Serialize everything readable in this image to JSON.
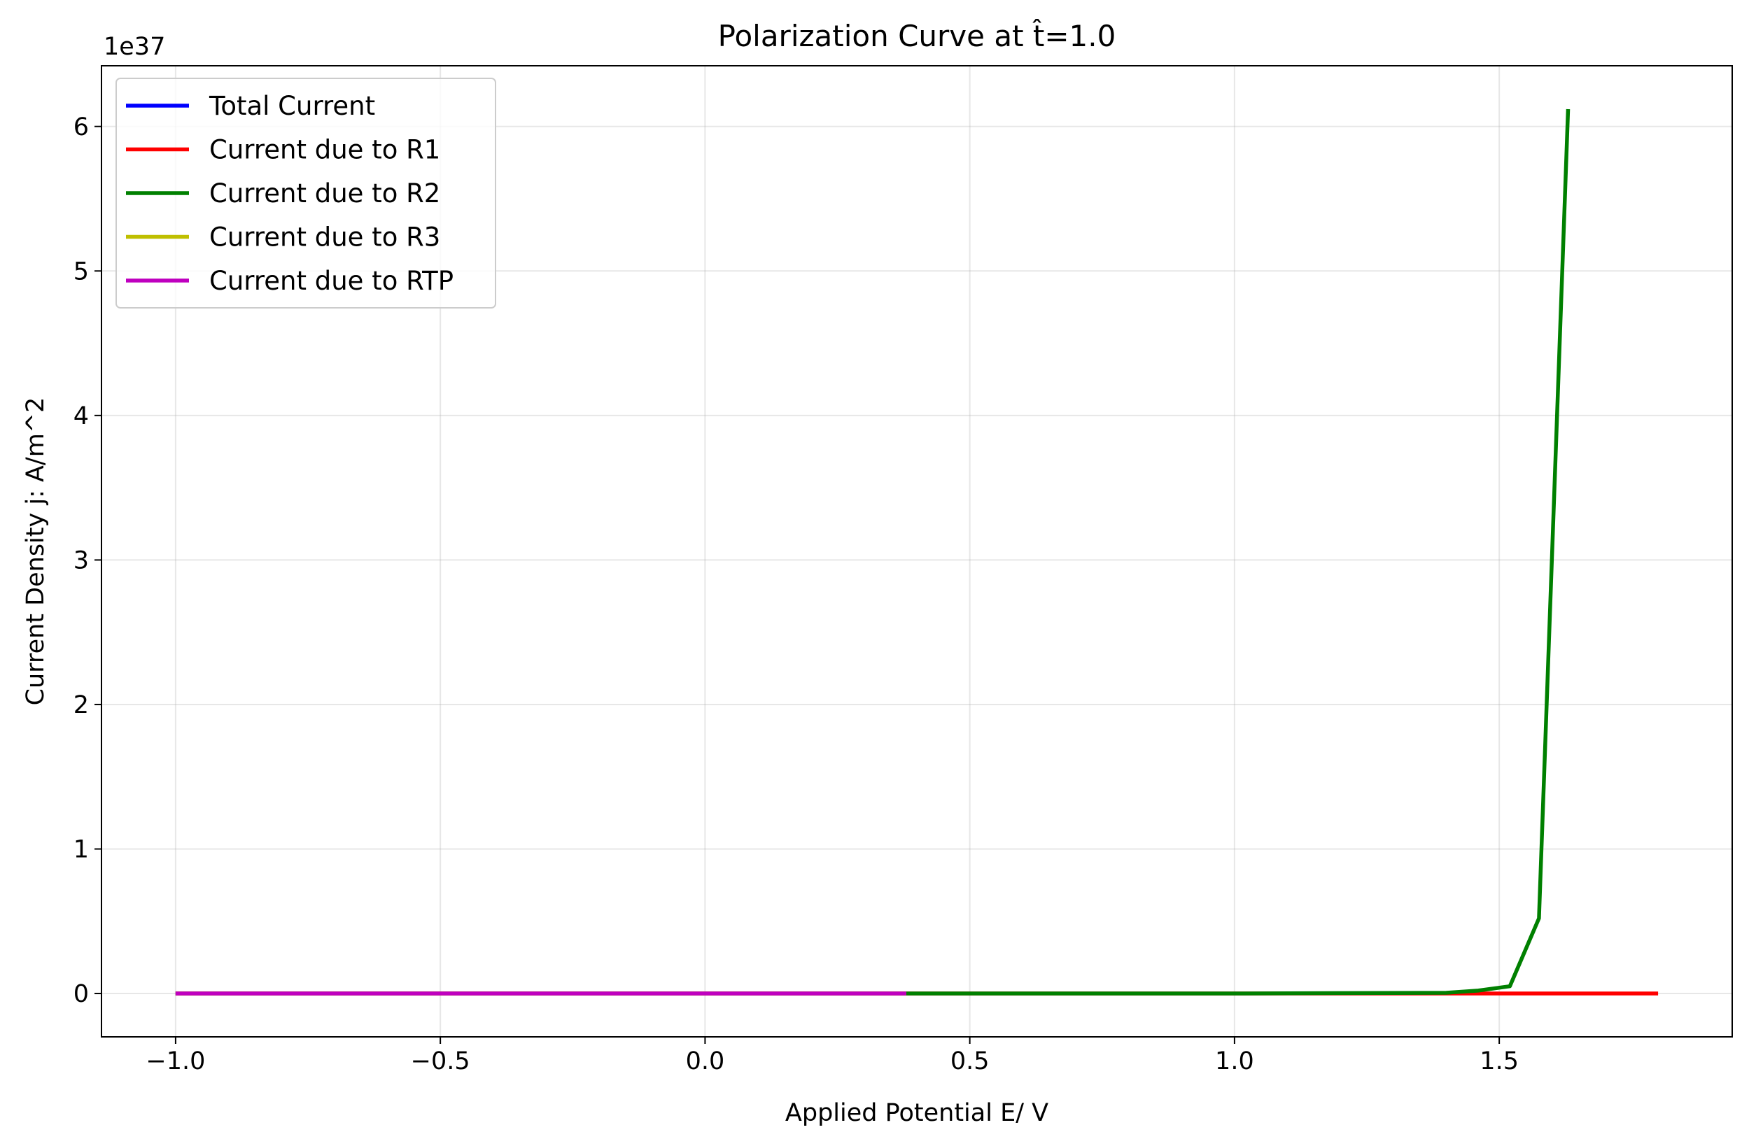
{
  "chart_data": {
    "type": "line",
    "title": "Polarization Curve at t̂=1.0",
    "xlabel": "Applied Potential E/ V",
    "ylabel": "Current Density j: A/m^2",
    "y_offset_label": "1e37",
    "y_scale_factor": 1e+37,
    "xlim": [
      -1.14,
      1.94
    ],
    "ylim": [
      -0.3,
      6.42
    ],
    "xticks": [
      -1.0,
      -0.5,
      0.0,
      0.5,
      1.0,
      1.5
    ],
    "xtick_labels": [
      "−1.0",
      "−0.5",
      "0.0",
      "0.5",
      "1.0",
      "1.5"
    ],
    "yticks": [
      0,
      1,
      2,
      3,
      4,
      5,
      6
    ],
    "ytick_labels": [
      "0",
      "1",
      "2",
      "3",
      "4",
      "5",
      "6"
    ],
    "grid": true,
    "legend_position": "top-left",
    "series": [
      {
        "name": "Total Current",
        "color": "#0000ff",
        "x": [
          -1.0,
          0.38
        ],
        "y": [
          0,
          0
        ]
      },
      {
        "name": "Current due to R1",
        "color": "#ff0000",
        "x": [
          -1.0,
          1.8
        ],
        "y": [
          0,
          0
        ]
      },
      {
        "name": "Current due to R2",
        "color": "#008000",
        "x": [
          0.38,
          1.0,
          1.4,
          1.46,
          1.52,
          1.575,
          1.63
        ],
        "y": [
          0,
          0,
          0.005,
          0.02,
          0.05,
          0.52,
          6.12
        ]
      },
      {
        "name": "Current due to R3",
        "color": "#bfbf00",
        "x": [
          -1.0,
          0.38
        ],
        "y": [
          0,
          0
        ]
      },
      {
        "name": "Current due to RTP",
        "color": "#bf00bf",
        "x": [
          -1.0,
          0.38
        ],
        "y": [
          0,
          0
        ]
      }
    ]
  }
}
